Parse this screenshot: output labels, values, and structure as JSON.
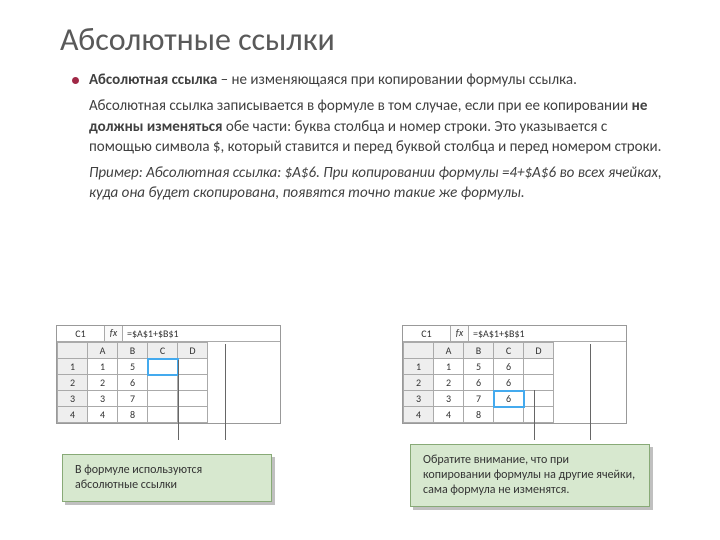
{
  "slide": {
    "title": "Абсолютные ссылки",
    "definition_prefix": "Абсолютная ссылка",
    "definition_rest": " – не изменяющаяся при копировании формулы ссылка.",
    "para2_a": "Абсолютная ссылка записывается в формуле в том случае, если при ее копировании ",
    "para2_bold": "не должны изменяться",
    "para2_b": " обе части: буква столбца и номер строки. Это указывается с помощью символа $, который ставится и перед буквой столбца и перед номером строки.",
    "para3": "Пример: Абсолютная ссылка: $A$6. При копировании формулы =4+$A$6 во всех ячейках, куда она будет скопирована, появятся точно такие же формулы."
  },
  "sheet_left": {
    "namebox": "C1",
    "fx": "fx",
    "formula": "=$A$1+$B$1",
    "cols": [
      "",
      "A",
      "B",
      "C",
      "D"
    ],
    "rows": [
      [
        "1",
        "1",
        "5",
        "",
        ""
      ],
      [
        "2",
        "2",
        "6",
        "",
        ""
      ],
      [
        "3",
        "3",
        "7",
        "",
        ""
      ],
      [
        "4",
        "4",
        "8",
        "",
        ""
      ]
    ],
    "active": {
      "r": 0,
      "c": 3
    }
  },
  "sheet_right": {
    "namebox": "C1",
    "fx": "fx",
    "formula": "=$A$1+$B$1",
    "cols": [
      "",
      "A",
      "B",
      "C",
      "D"
    ],
    "rows": [
      [
        "1",
        "1",
        "5",
        "6",
        ""
      ],
      [
        "2",
        "2",
        "6",
        "6",
        ""
      ],
      [
        "3",
        "3",
        "7",
        "6",
        ""
      ],
      [
        "4",
        "4",
        "8",
        "",
        ""
      ]
    ],
    "active": {
      "r": 2,
      "c": 3
    }
  },
  "note_left": "В формуле используются абсолютные ссылки",
  "note_right": "Обратите внимание, что при копировании формулы на другие ячейки, сама формула не изменятся.",
  "colors": {
    "bullet": "#a02846",
    "note_bg": "#d7e8cf",
    "note_border": "#88aa77",
    "cell_active": "#44aaee"
  }
}
